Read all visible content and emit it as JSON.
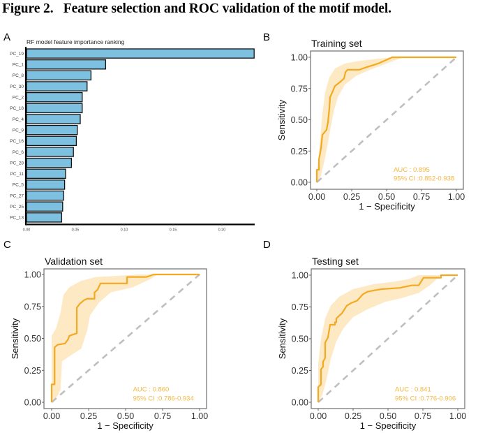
{
  "figure": {
    "title": "Figure 2.   Feature selection and ROC validation of the motif model."
  },
  "colors": {
    "bar_fill": "#7ec0e0",
    "bar_stroke": "#111111",
    "roc_line": "#f3a922",
    "roc_band": "#fde9c4",
    "auc_text": "#f5b840",
    "diagonal": "#bfbfbf"
  },
  "chart_data": [
    {
      "panel": "A",
      "type": "bar",
      "orientation": "horizontal",
      "title": "RF model feature importance ranking",
      "xlabel": "",
      "ylabel": "",
      "categories": [
        "PC_19",
        "PC_1",
        "PC_8",
        "PC_30",
        "PC_2",
        "PC_18",
        "PC_4",
        "PC_9",
        "PC_16",
        "PC_6",
        "PC_28",
        "PC_11",
        "PC_5",
        "PC_27",
        "PC_25",
        "PC_13"
      ],
      "values": [
        0.233,
        0.081,
        0.066,
        0.062,
        0.057,
        0.057,
        0.055,
        0.052,
        0.051,
        0.048,
        0.046,
        0.04,
        0.039,
        0.038,
        0.037,
        0.036
      ],
      "xlim": [
        0,
        0.233
      ],
      "xticks": [
        "0.00",
        "0.05",
        "0.10",
        "0.15",
        "0.20"
      ],
      "xtick_values": [
        0,
        0.05,
        0.1,
        0.15,
        0.2
      ],
      "grid": false
    },
    {
      "panel": "B",
      "type": "line",
      "title": "Training set",
      "xlabel": "1 - Specificity",
      "ylabel": "Sensitivity",
      "xlim": [
        0,
        1
      ],
      "ylim": [
        0,
        1
      ],
      "xticks": [
        "0.00",
        "0.25",
        "0.50",
        "0.75",
        "1.00"
      ],
      "yticks": [
        "0.00",
        "0.25",
        "0.50",
        "0.75",
        "1.00"
      ],
      "auc_label": "AUC : 0.895",
      "ci_label": "95% CI :0.852-0.938",
      "auc": 0.895,
      "ci": [
        0.852,
        0.938
      ],
      "curve": [
        [
          0,
          0
        ],
        [
          0,
          0.1
        ],
        [
          0.015,
          0.1
        ],
        [
          0.015,
          0.18
        ],
        [
          0.03,
          0.27
        ],
        [
          0.04,
          0.38
        ],
        [
          0.055,
          0.4
        ],
        [
          0.07,
          0.42
        ],
        [
          0.08,
          0.48
        ],
        [
          0.09,
          0.59
        ],
        [
          0.095,
          0.68
        ],
        [
          0.115,
          0.73
        ],
        [
          0.13,
          0.77
        ],
        [
          0.165,
          0.8
        ],
        [
          0.195,
          0.83
        ],
        [
          0.205,
          0.88
        ],
        [
          0.22,
          0.9
        ],
        [
          0.305,
          0.9
        ],
        [
          0.355,
          0.92
        ],
        [
          0.44,
          0.95
        ],
        [
          0.54,
          1.0
        ],
        [
          1,
          1
        ]
      ],
      "band_upper": [
        [
          0,
          0.05
        ],
        [
          0.02,
          0.3
        ],
        [
          0.04,
          0.55
        ],
        [
          0.06,
          0.72
        ],
        [
          0.09,
          0.84
        ],
        [
          0.13,
          0.91
        ],
        [
          0.2,
          0.95
        ],
        [
          0.3,
          0.97
        ],
        [
          0.45,
          0.99
        ],
        [
          0.55,
          1.0
        ],
        [
          1,
          1
        ]
      ],
      "band_lower": [
        [
          0,
          0
        ],
        [
          0.03,
          0.05
        ],
        [
          0.06,
          0.2
        ],
        [
          0.09,
          0.38
        ],
        [
          0.12,
          0.56
        ],
        [
          0.15,
          0.68
        ],
        [
          0.2,
          0.78
        ],
        [
          0.28,
          0.85
        ],
        [
          0.38,
          0.9
        ],
        [
          0.5,
          0.95
        ],
        [
          0.62,
          1.0
        ],
        [
          1,
          1
        ]
      ]
    },
    {
      "panel": "C",
      "type": "line",
      "title": "Validation set",
      "xlabel": "1 - Specificity",
      "ylabel": "Sensitivity",
      "xlim": [
        0,
        1
      ],
      "ylim": [
        0,
        1
      ],
      "xticks": [
        "0.00",
        "0.25",
        "0.50",
        "0.75",
        "1.00"
      ],
      "yticks": [
        "0.00",
        "0.25",
        "0.50",
        "0.75",
        "1.00"
      ],
      "auc_label": "AUC : 0.860",
      "ci_label": "95% CI :0.786-0.934",
      "auc": 0.86,
      "ci": [
        0.786,
        0.934
      ],
      "curve": [
        [
          0,
          0
        ],
        [
          0,
          0.14
        ],
        [
          0.02,
          0.14
        ],
        [
          0.02,
          0.43
        ],
        [
          0.04,
          0.45
        ],
        [
          0.09,
          0.46
        ],
        [
          0.11,
          0.49
        ],
        [
          0.12,
          0.52
        ],
        [
          0.17,
          0.54
        ],
        [
          0.17,
          0.74
        ],
        [
          0.19,
          0.77
        ],
        [
          0.22,
          0.8
        ],
        [
          0.24,
          0.81
        ],
        [
          0.29,
          0.81
        ],
        [
          0.29,
          0.86
        ],
        [
          0.31,
          0.88
        ],
        [
          0.33,
          0.93
        ],
        [
          0.51,
          0.93
        ],
        [
          0.51,
          0.98
        ],
        [
          0.64,
          0.98
        ],
        [
          0.69,
          1.0
        ],
        [
          1,
          1
        ]
      ],
      "band_upper": [
        [
          0,
          0.52
        ],
        [
          0.03,
          0.58
        ],
        [
          0.06,
          0.7
        ],
        [
          0.08,
          0.84
        ],
        [
          0.12,
          0.9
        ],
        [
          0.2,
          0.95
        ],
        [
          0.3,
          0.98
        ],
        [
          0.45,
          0.99
        ],
        [
          0.6,
          1.0
        ],
        [
          1,
          1
        ]
      ],
      "band_lower": [
        [
          0,
          0
        ],
        [
          0.04,
          0.05
        ],
        [
          0.06,
          0.1
        ],
        [
          0.07,
          0.32
        ],
        [
          0.12,
          0.36
        ],
        [
          0.2,
          0.42
        ],
        [
          0.24,
          0.56
        ],
        [
          0.26,
          0.68
        ],
        [
          0.32,
          0.78
        ],
        [
          0.4,
          0.86
        ],
        [
          0.55,
          0.9
        ],
        [
          0.66,
          0.96
        ],
        [
          0.72,
          1.0
        ],
        [
          1,
          1
        ]
      ]
    },
    {
      "panel": "D",
      "type": "line",
      "title": "Testing set",
      "xlabel": "1 - Specificity",
      "ylabel": "Sensitivity",
      "xlim": [
        0,
        1
      ],
      "ylim": [
        0,
        1
      ],
      "xticks": [
        "0.00",
        "0.25",
        "0.50",
        "0.75",
        "1.00"
      ],
      "yticks": [
        "0.00",
        "0.25",
        "0.50",
        "0.75",
        "1.00"
      ],
      "auc_label": "AUC : 0.841",
      "ci_label": "95% CI :0.776-0.906",
      "auc": 0.841,
      "ci": [
        0.776,
        0.906
      ],
      "curve": [
        [
          0,
          0
        ],
        [
          0,
          0.12
        ],
        [
          0.02,
          0.14
        ],
        [
          0.02,
          0.26
        ],
        [
          0.035,
          0.28
        ],
        [
          0.035,
          0.32
        ],
        [
          0.05,
          0.35
        ],
        [
          0.05,
          0.47
        ],
        [
          0.07,
          0.51
        ],
        [
          0.085,
          0.61
        ],
        [
          0.12,
          0.61
        ],
        [
          0.12,
          0.63
        ],
        [
          0.13,
          0.63
        ],
        [
          0.13,
          0.66
        ],
        [
          0.17,
          0.7
        ],
        [
          0.205,
          0.76
        ],
        [
          0.235,
          0.78
        ],
        [
          0.28,
          0.8
        ],
        [
          0.32,
          0.85
        ],
        [
          0.355,
          0.87
        ],
        [
          0.4,
          0.88
        ],
        [
          0.455,
          0.89
        ],
        [
          0.585,
          0.9
        ],
        [
          0.67,
          0.92
        ],
        [
          0.72,
          0.92
        ],
        [
          0.755,
          0.98
        ],
        [
          0.88,
          0.98
        ],
        [
          0.88,
          1.0
        ],
        [
          1,
          1
        ]
      ],
      "band_upper": [
        [
          0,
          0.3
        ],
        [
          0.02,
          0.5
        ],
        [
          0.05,
          0.66
        ],
        [
          0.09,
          0.76
        ],
        [
          0.15,
          0.83
        ],
        [
          0.25,
          0.89
        ],
        [
          0.4,
          0.93
        ],
        [
          0.55,
          0.95
        ],
        [
          0.65,
          0.97
        ],
        [
          0.72,
          1.0
        ],
        [
          1,
          1
        ]
      ],
      "band_lower": [
        [
          0,
          0
        ],
        [
          0.03,
          0.06
        ],
        [
          0.06,
          0.18
        ],
        [
          0.09,
          0.34
        ],
        [
          0.13,
          0.48
        ],
        [
          0.18,
          0.58
        ],
        [
          0.25,
          0.67
        ],
        [
          0.35,
          0.73
        ],
        [
          0.48,
          0.79
        ],
        [
          0.6,
          0.82
        ],
        [
          0.72,
          0.86
        ],
        [
          0.8,
          0.92
        ],
        [
          0.88,
          1.0
        ],
        [
          1,
          1
        ]
      ]
    }
  ]
}
